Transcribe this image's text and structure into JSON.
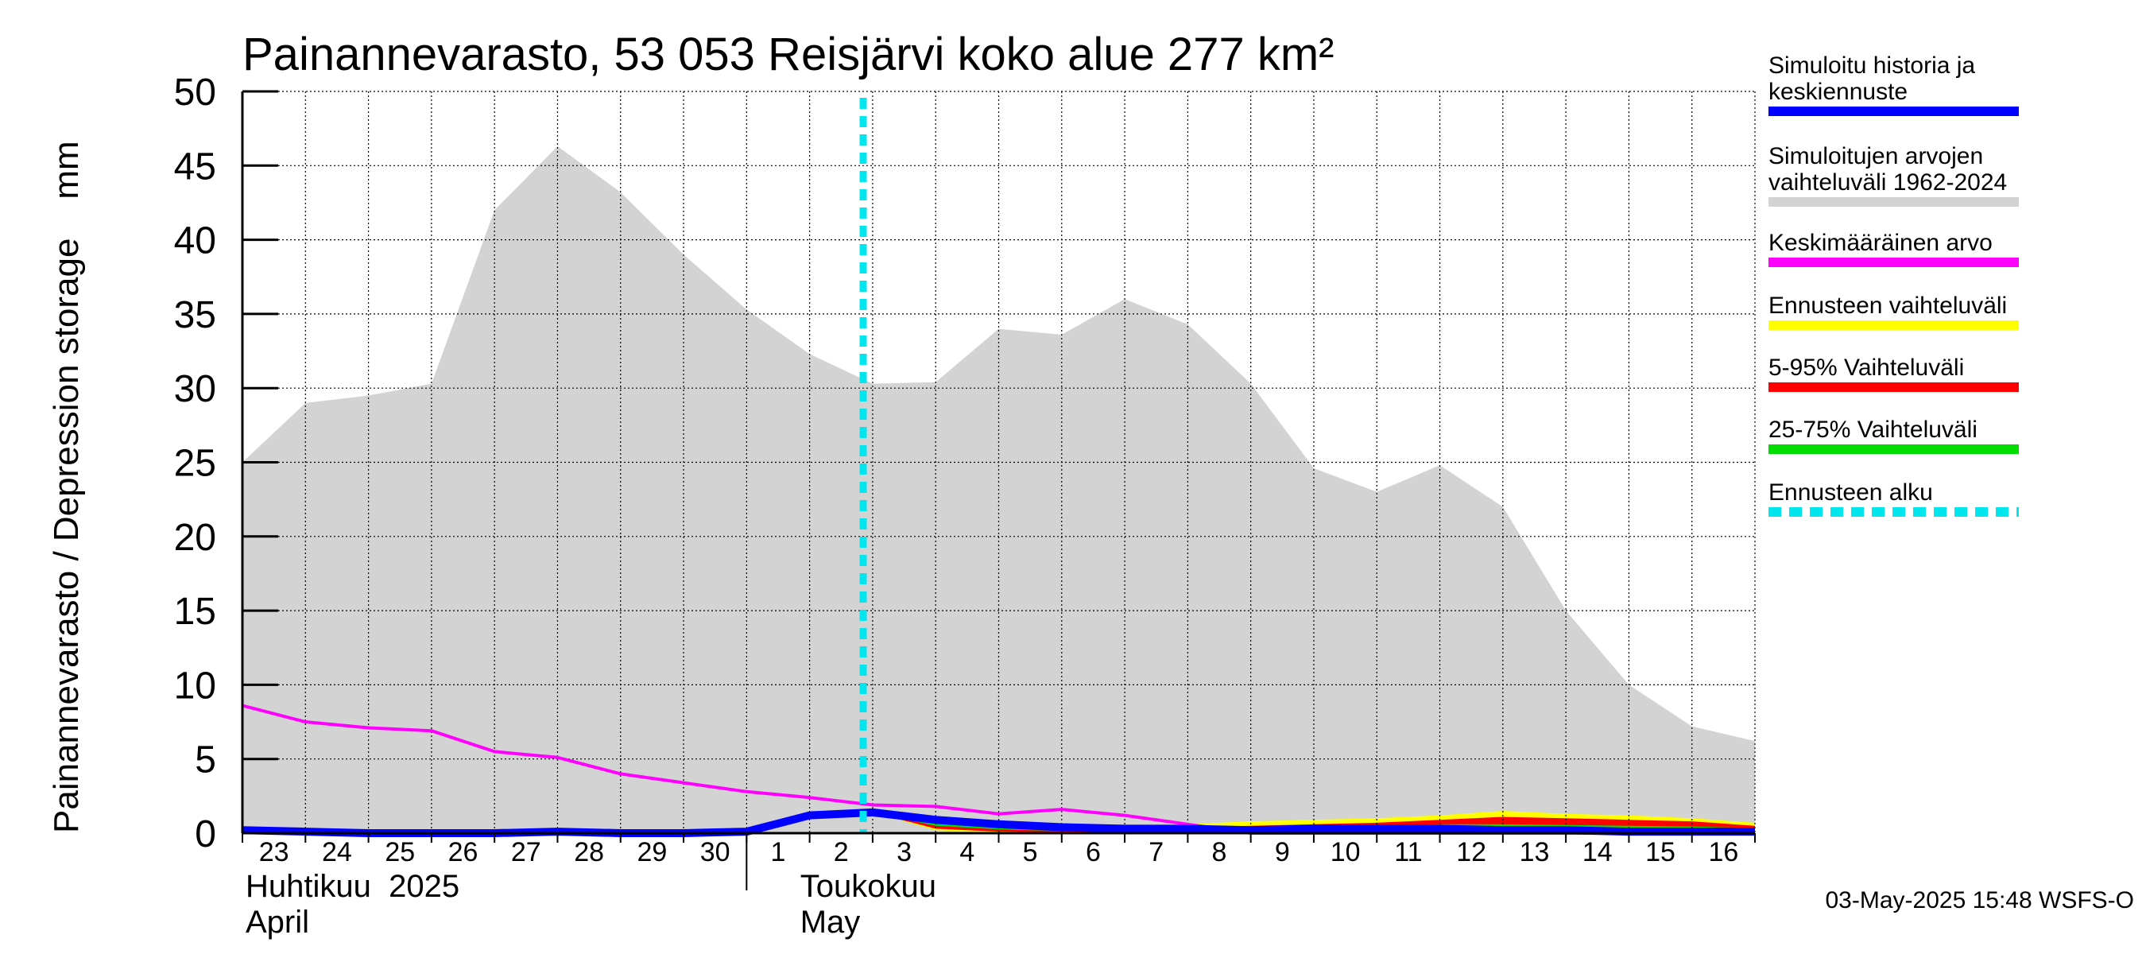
{
  "chart_data": {
    "type": "area",
    "title": "Painannevarasto, 53 053 Reisjärvi koko alue 277 km²",
    "ylabel": "Painannevarasto / Depression storage    mm",
    "ylim": [
      0,
      50
    ],
    "yticks": [
      0,
      5,
      10,
      15,
      20,
      25,
      30,
      35,
      40,
      45,
      50
    ],
    "grid": true,
    "x_tick_labels": [
      "23",
      "24",
      "25",
      "26",
      "27",
      "28",
      "29",
      "30",
      "1",
      "2",
      "3",
      "4",
      "5",
      "6",
      "7",
      "8",
      "9",
      "10",
      "11",
      "12",
      "13",
      "14",
      "15",
      "16"
    ],
    "x_start": "2025-04-23",
    "x_end": "2025-05-17",
    "month_labels": [
      {
        "line1": "Huhtikuu  2025",
        "line2": "April",
        "start": "2025-04-23"
      },
      {
        "line1": "Toukokuu",
        "line2": "May",
        "start": "2025-05-01"
      }
    ],
    "forecast_start": "2025-05-03",
    "series": [
      {
        "name": "Simuloitujen arvojen vaihteluväli 1962-2024",
        "kind": "band",
        "color": "#d3d3d3",
        "x": [
          "2025-04-23",
          "2025-04-24",
          "2025-04-25",
          "2025-04-26",
          "2025-04-27",
          "2025-04-28",
          "2025-04-29",
          "2025-04-30",
          "2025-05-01",
          "2025-05-02",
          "2025-05-03",
          "2025-05-04",
          "2025-05-05",
          "2025-05-06",
          "2025-05-07",
          "2025-05-08",
          "2025-05-09",
          "2025-05-10",
          "2025-05-11",
          "2025-05-12",
          "2025-05-13",
          "2025-05-14",
          "2025-05-15",
          "2025-05-16",
          "2025-05-17"
        ],
        "upper": [
          25.0,
          29.0,
          29.5,
          30.3,
          42.0,
          46.3,
          43.2,
          39.0,
          35.3,
          32.3,
          30.3,
          30.4,
          34.0,
          33.6,
          36.0,
          34.3,
          30.3,
          24.6,
          23.0,
          24.8,
          22.0,
          15.0,
          10.0,
          7.2,
          6.2
        ],
        "lower": [
          0,
          0,
          0,
          0,
          0,
          0,
          0,
          0,
          0,
          0,
          0,
          0,
          0,
          0,
          0,
          0,
          0,
          0,
          0,
          0,
          0,
          0,
          0,
          0,
          0
        ]
      },
      {
        "name": "Ennusteen vaihteluväli",
        "kind": "band",
        "color": "#ffff00",
        "x": [
          "2025-05-03",
          "2025-05-04",
          "2025-05-05",
          "2025-05-06",
          "2025-05-07",
          "2025-05-08",
          "2025-05-09",
          "2025-05-10",
          "2025-05-11",
          "2025-05-12",
          "2025-05-13",
          "2025-05-14",
          "2025-05-15",
          "2025-05-16",
          "2025-05-17"
        ],
        "upper": [
          1.4,
          1.0,
          0.8,
          0.6,
          0.5,
          0.6,
          0.8,
          0.9,
          1.0,
          1.2,
          1.5,
          1.3,
          1.2,
          1.0,
          0.7
        ],
        "lower": [
          1.4,
          0.2,
          0.0,
          0.0,
          0.0,
          0.0,
          0.0,
          0.0,
          0.0,
          0.0,
          0.0,
          0.0,
          0.0,
          0.0,
          0.0
        ]
      },
      {
        "name": "5-95% Vaihteluväli",
        "kind": "band",
        "color": "#ff0000",
        "x": [
          "2025-05-03",
          "2025-05-04",
          "2025-05-05",
          "2025-05-06",
          "2025-05-07",
          "2025-05-08",
          "2025-05-09",
          "2025-05-10",
          "2025-05-11",
          "2025-05-12",
          "2025-05-13",
          "2025-05-14",
          "2025-05-15",
          "2025-05-16",
          "2025-05-17"
        ],
        "upper": [
          1.4,
          0.9,
          0.6,
          0.5,
          0.4,
          0.4,
          0.5,
          0.6,
          0.7,
          0.9,
          1.1,
          1.0,
          0.9,
          0.8,
          0.5
        ],
        "lower": [
          1.4,
          0.3,
          0.1,
          0.05,
          0.05,
          0.05,
          0.05,
          0.05,
          0.05,
          0.05,
          0.05,
          0.05,
          0.05,
          0.05,
          0.05
        ]
      },
      {
        "name": "25-75% Vaihteluväli",
        "kind": "band",
        "color": "#00dd00",
        "x": [
          "2025-05-03",
          "2025-05-04",
          "2025-05-05",
          "2025-05-06",
          "2025-05-07",
          "2025-05-08",
          "2025-05-09",
          "2025-05-10",
          "2025-05-11",
          "2025-05-12",
          "2025-05-13",
          "2025-05-14",
          "2025-05-15",
          "2025-05-16",
          "2025-05-17"
        ],
        "upper": [
          1.4,
          0.8,
          0.5,
          0.4,
          0.3,
          0.3,
          0.35,
          0.4,
          0.5,
          0.6,
          0.6,
          0.55,
          0.5,
          0.45,
          0.35
        ],
        "lower": [
          1.4,
          0.5,
          0.25,
          0.15,
          0.1,
          0.1,
          0.1,
          0.1,
          0.1,
          0.15,
          0.2,
          0.2,
          0.2,
          0.15,
          0.1
        ]
      },
      {
        "name": "Keskimääräinen arvo",
        "kind": "line",
        "color": "#ff00ff",
        "width": 4,
        "x": [
          "2025-04-23",
          "2025-04-24",
          "2025-04-25",
          "2025-04-26",
          "2025-04-27",
          "2025-04-28",
          "2025-04-29",
          "2025-04-30",
          "2025-05-01",
          "2025-05-02",
          "2025-05-03",
          "2025-05-04",
          "2025-05-05",
          "2025-05-06",
          "2025-05-07",
          "2025-05-08",
          "2025-05-09",
          "2025-05-10",
          "2025-05-11",
          "2025-05-12",
          "2025-05-13",
          "2025-05-14",
          "2025-05-15",
          "2025-05-16",
          "2025-05-17"
        ],
        "y": [
          8.6,
          7.5,
          7.1,
          6.9,
          5.5,
          5.1,
          4.0,
          3.4,
          2.8,
          2.4,
          1.9,
          1.8,
          1.3,
          1.6,
          1.2,
          0.6,
          0.0,
          0.0,
          0.0,
          0.0,
          0.0,
          0.0,
          0.0,
          0.0,
          0.0
        ]
      },
      {
        "name": "Simuloitu historia ja keskiennuste",
        "kind": "line",
        "color": "#0000ff",
        "width": 10,
        "x": [
          "2025-04-23",
          "2025-04-24",
          "2025-04-25",
          "2025-04-26",
          "2025-04-27",
          "2025-04-28",
          "2025-04-29",
          "2025-04-30",
          "2025-05-01",
          "2025-05-02",
          "2025-05-03",
          "2025-05-04",
          "2025-05-05",
          "2025-05-06",
          "2025-05-07",
          "2025-05-08",
          "2025-05-09",
          "2025-05-10",
          "2025-05-11",
          "2025-05-12",
          "2025-05-13",
          "2025-05-14",
          "2025-05-15",
          "2025-05-16",
          "2025-05-17"
        ],
        "y": [
          0.2,
          0.1,
          0.0,
          0.0,
          0.0,
          0.1,
          0.0,
          0.0,
          0.1,
          1.2,
          1.4,
          0.9,
          0.6,
          0.4,
          0.3,
          0.3,
          0.2,
          0.3,
          0.3,
          0.3,
          0.2,
          0.2,
          0.1,
          0.1,
          0.1
        ]
      }
    ],
    "legend": {
      "placement": "right",
      "entries": [
        {
          "label": "Simuloitu historia ja keskiennuste",
          "color": "#0000ff",
          "style": "solid"
        },
        {
          "label": "Simuloitujen arvojen vaihteluväli 1962-2024",
          "color": "#d3d3d3",
          "style": "solid"
        },
        {
          "label": "Keskimääräinen arvo",
          "color": "#ff00ff",
          "style": "solid"
        },
        {
          "label": "Ennusteen vaihteluväli",
          "color": "#ffff00",
          "style": "solid"
        },
        {
          "label": "5-95% Vaihteluväli",
          "color": "#ff0000",
          "style": "solid"
        },
        {
          "label": "25-75% Vaihteluväli",
          "color": "#00dd00",
          "style": "solid"
        },
        {
          "label": "Ennusteen alku",
          "color": "#00e5ee",
          "style": "dashed"
        }
      ]
    },
    "footer": "03-May-2025 15:48 WSFS-O"
  }
}
